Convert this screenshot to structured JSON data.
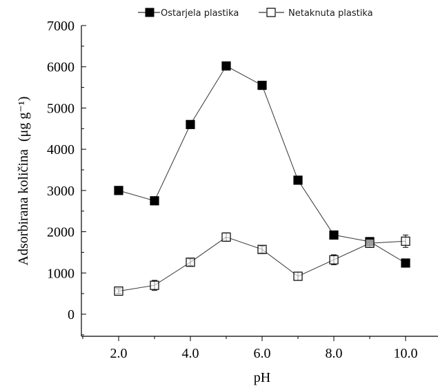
{
  "chart_data": {
    "type": "line",
    "title": "",
    "xlabel": "pH",
    "ylabel_main": "Adsorbirana količina",
    "ylabel_unit": "(μg g⁻¹)",
    "xlim": [
      1.0,
      11.0
    ],
    "ylim": [
      -500,
      7000
    ],
    "xticks": [
      2.0,
      4.0,
      6.0,
      8.0,
      10.0
    ],
    "xtick_labels": [
      "2.0",
      "4.0",
      "6.0",
      "8.0",
      "10.0"
    ],
    "yticks": [
      0,
      1000,
      2000,
      3000,
      4000,
      5000,
      6000,
      7000
    ],
    "ytick_labels": [
      "0",
      "1000",
      "2000",
      "3000",
      "4000",
      "5000",
      "6000",
      "7000"
    ],
    "grid": false,
    "legend_position": "top",
    "series": [
      {
        "name": "Ostarjela plastika",
        "marker": "filled-square",
        "color": "#000000",
        "x": [
          2,
          3,
          4,
          5,
          6,
          7,
          8,
          9,
          10
        ],
        "y": [
          3000,
          2750,
          4600,
          6020,
          5550,
          3250,
          1920,
          1760,
          1240
        ]
      },
      {
        "name": "Netaknuta plastika",
        "marker": "open-square",
        "color": "#000000",
        "x": [
          2,
          3,
          4,
          5,
          6,
          7,
          8,
          9,
          10
        ],
        "y": [
          560,
          700,
          1260,
          1870,
          1570,
          920,
          1320,
          1720,
          1770
        ],
        "err": [
          60,
          120,
          80,
          100,
          80,
          100,
          120,
          100,
          150
        ]
      }
    ]
  }
}
